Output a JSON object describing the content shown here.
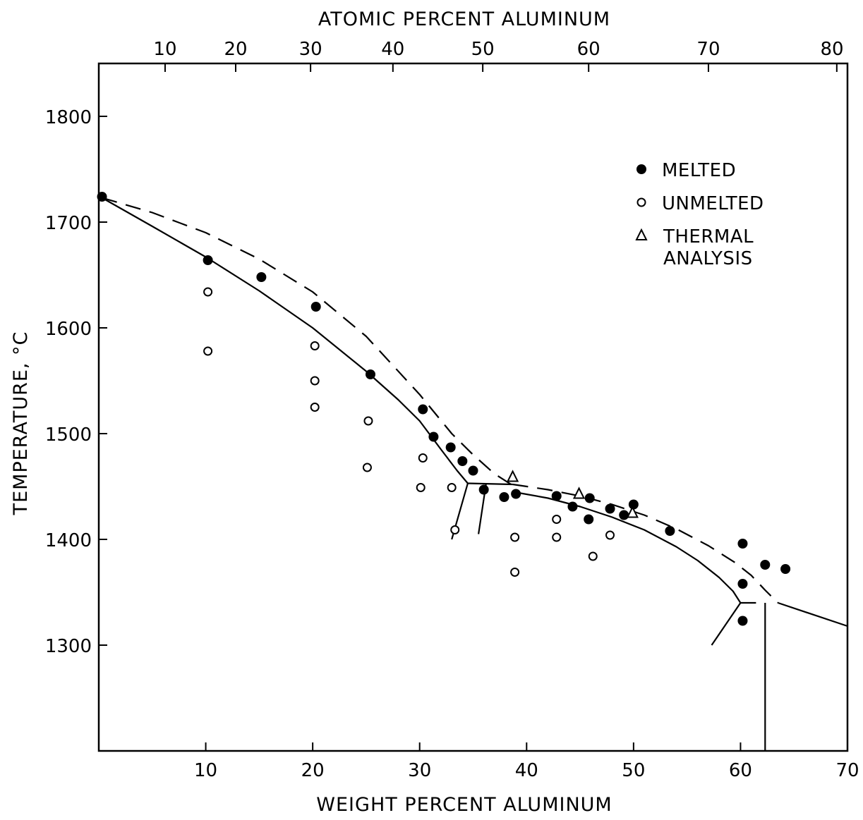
{
  "chart_data": {
    "type": "scatter",
    "title": "",
    "xlabel": "WEIGHT PERCENT ALUMINUM",
    "x2label": "ATOMIC PERCENT ALUMINUM",
    "ylabel": "TEMPERATURE, °C",
    "xlim": [
      0,
      70
    ],
    "ylim": [
      1200,
      1850
    ],
    "x_ticks": [
      "10",
      "20",
      "30",
      "40",
      "50",
      "60",
      "70"
    ],
    "y_ticks": [
      "1300",
      "1400",
      "1500",
      "1600",
      "1700",
      "1800"
    ],
    "top_axis": {
      "label": "ATOMIC PERCENT ALUMINUM",
      "ticks": [
        {
          "label": "10",
          "wt": 6.2
        },
        {
          "label": "20",
          "wt": 12.8
        },
        {
          "label": "30",
          "wt": 19.8
        },
        {
          "label": "40",
          "wt": 27.5
        },
        {
          "label": "50",
          "wt": 35.9
        },
        {
          "label": "60",
          "wt": 45.8
        },
        {
          "label": "70",
          "wt": 57.0
        },
        {
          "label": "80",
          "wt": 69.0
        }
      ]
    },
    "grid": false,
    "legend": {
      "position": "top-right",
      "entries": [
        {
          "marker": "filled-circle",
          "label": "MELTED"
        },
        {
          "marker": "open-circle",
          "label": "UNMELTED"
        },
        {
          "marker": "open-triangle",
          "label": "THERMAL",
          "label2": "ANALYSIS"
        }
      ]
    },
    "series": [
      {
        "name": "MELTED",
        "marker": "filled-circle",
        "points": [
          [
            0.3,
            1724
          ],
          [
            10.2,
            1664
          ],
          [
            15.2,
            1648
          ],
          [
            20.3,
            1620
          ],
          [
            25.4,
            1556
          ],
          [
            30.3,
            1523
          ],
          [
            31.3,
            1497
          ],
          [
            32.9,
            1487
          ],
          [
            34.0,
            1474
          ],
          [
            35.0,
            1465
          ],
          [
            36.0,
            1447
          ],
          [
            37.9,
            1440
          ],
          [
            39.0,
            1443
          ],
          [
            42.8,
            1441
          ],
          [
            44.3,
            1431
          ],
          [
            45.9,
            1439
          ],
          [
            45.8,
            1419
          ],
          [
            47.8,
            1429
          ],
          [
            49.1,
            1423
          ],
          [
            50.0,
            1433
          ],
          [
            53.4,
            1408
          ],
          [
            60.2,
            1396
          ],
          [
            60.2,
            1358
          ],
          [
            62.3,
            1376
          ],
          [
            64.2,
            1372
          ],
          [
            60.2,
            1323
          ]
        ]
      },
      {
        "name": "UNMELTED",
        "marker": "open-circle",
        "points": [
          [
            10.2,
            1634
          ],
          [
            10.2,
            1578
          ],
          [
            20.2,
            1583
          ],
          [
            20.2,
            1550
          ],
          [
            20.2,
            1525
          ],
          [
            25.2,
            1512
          ],
          [
            25.1,
            1468
          ],
          [
            30.3,
            1477
          ],
          [
            30.1,
            1449
          ],
          [
            33.0,
            1449
          ],
          [
            33.3,
            1409
          ],
          [
            38.9,
            1402
          ],
          [
            38.9,
            1369
          ],
          [
            42.8,
            1419
          ],
          [
            42.8,
            1402
          ],
          [
            46.2,
            1384
          ],
          [
            47.8,
            1404
          ]
        ]
      },
      {
        "name": "THERMAL ANALYSIS",
        "marker": "open-triangle",
        "points": [
          [
            38.7,
            1459
          ],
          [
            44.9,
            1443
          ],
          [
            49.9,
            1425
          ]
        ]
      }
    ],
    "lines": [
      {
        "style": "solid",
        "points": [
          [
            0.3,
            1723
          ],
          [
            5,
            1696
          ],
          [
            10,
            1667
          ],
          [
            15,
            1635
          ],
          [
            20,
            1600
          ],
          [
            25,
            1559
          ],
          [
            28,
            1532
          ],
          [
            30,
            1512
          ],
          [
            32,
            1485
          ],
          [
            33.5,
            1465
          ],
          [
            34.5,
            1453
          ]
        ]
      },
      {
        "style": "dashed",
        "points": [
          [
            0.3,
            1723
          ],
          [
            5,
            1709
          ],
          [
            10,
            1690
          ],
          [
            15,
            1665
          ],
          [
            20,
            1634
          ],
          [
            25,
            1592
          ],
          [
            30,
            1537
          ],
          [
            33,
            1500
          ],
          [
            35,
            1480
          ],
          [
            37,
            1462
          ],
          [
            38.7,
            1451
          ]
        ]
      },
      {
        "style": "solid",
        "points": [
          [
            34.5,
            1453
          ],
          [
            38.7,
            1452
          ]
        ]
      },
      {
        "style": "solid",
        "points": [
          [
            34.5,
            1453
          ],
          [
            33.0,
            1400
          ]
        ]
      },
      {
        "style": "solid",
        "points": [
          [
            36.2,
            1452
          ],
          [
            35.5,
            1405
          ]
        ]
      },
      {
        "style": "solid",
        "points": [
          [
            38.7,
            1445
          ],
          [
            42,
            1439
          ],
          [
            45,
            1431
          ],
          [
            48,
            1421
          ],
          [
            51,
            1409
          ],
          [
            54,
            1393
          ],
          [
            56,
            1380
          ],
          [
            58,
            1364
          ],
          [
            59.3,
            1351
          ],
          [
            60.0,
            1340
          ]
        ]
      },
      {
        "style": "dashed",
        "points": [
          [
            38.7,
            1452
          ],
          [
            42,
            1447
          ],
          [
            45,
            1441
          ],
          [
            48,
            1433
          ],
          [
            51,
            1423
          ],
          [
            54,
            1410
          ],
          [
            57,
            1394
          ],
          [
            59.5,
            1378
          ],
          [
            61,
            1366
          ],
          [
            62.3,
            1352
          ],
          [
            63.5,
            1340
          ]
        ]
      },
      {
        "style": "dashed",
        "points": [
          [
            60.0,
            1340
          ],
          [
            62.3,
            1340
          ]
        ]
      },
      {
        "style": "solid",
        "points": [
          [
            60.0,
            1340
          ],
          [
            57.3,
            1300
          ]
        ]
      },
      {
        "style": "solid",
        "points": [
          [
            62.3,
            1340
          ],
          [
            62.3,
            1200
          ]
        ]
      },
      {
        "style": "solid",
        "points": [
          [
            63.5,
            1340
          ],
          [
            70,
            1318
          ]
        ]
      }
    ]
  }
}
